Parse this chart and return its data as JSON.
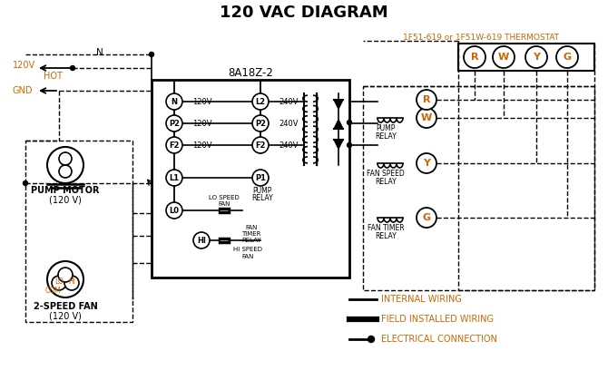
{
  "title": "120 VAC DIAGRAM",
  "title_color": "#000000",
  "title_fontsize": 13,
  "background_color": "#ffffff",
  "line_color": "#000000",
  "orange_color": "#cc6600",
  "thermostat_label": "1F51-619 or 1F51W-619 THERMOSTAT",
  "box_label": "8A18Z-2",
  "legend_items": [
    {
      "label": "INTERNAL WIRING"
    },
    {
      "label": "FIELD INSTALLED WIRING"
    },
    {
      "label": "ELECTRICAL CONNECTION"
    }
  ],
  "terminal_labels": [
    "R",
    "W",
    "Y",
    "G"
  ],
  "pump_motor_label_1": "PUMP MOTOR",
  "pump_motor_label_2": "(120 V)",
  "fan_label_1": "2-SPEED FAN",
  "fan_label_2": "(120 V)",
  "relay_labels": [
    "PUMP\nRELAY",
    "FAN SPEED\nRELAY",
    "FAN TIMER\nRELAY"
  ]
}
